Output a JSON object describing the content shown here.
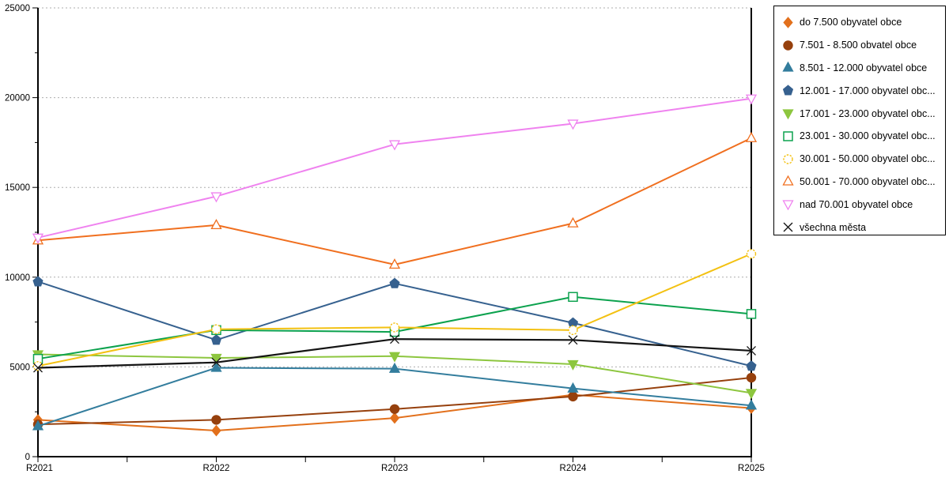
{
  "chart_data": {
    "type": "line",
    "x": [
      "R2021",
      "R2022",
      "R2023",
      "R2024",
      "R2025"
    ],
    "ylim": [
      0,
      25000
    ],
    "yticks": [
      0,
      5000,
      10000,
      15000,
      20000,
      25000
    ],
    "grid": "horizontal dashed gridlines",
    "legend_position": "top-right",
    "series": [
      {
        "name": "do 7.500 obyvatel obce",
        "color": "#e2701c",
        "marker": "diamond",
        "filled": true,
        "values": [
          2050,
          1450,
          2150,
          3450,
          2700
        ]
      },
      {
        "name": "7.501 - 8.500 obvatel obce",
        "color": "#96400d",
        "marker": "circle",
        "filled": true,
        "values": [
          1800,
          2050,
          2650,
          3350,
          4400
        ]
      },
      {
        "name": "8.501 - 12.000 obyvatel obce",
        "color": "#337d9d",
        "marker": "triangle-up",
        "filled": true,
        "values": [
          1700,
          4950,
          4900,
          3800,
          2850
        ]
      },
      {
        "name": "12.001 - 17.000 obyvatel obc...",
        "color": "#36618f",
        "marker": "pentagon",
        "filled": true,
        "values": [
          9750,
          6500,
          9650,
          7450,
          5050
        ]
      },
      {
        "name": "17.001 - 23.000 obyvatel obc...",
        "color": "#8dc63f",
        "marker": "triangle-down",
        "filled": true,
        "values": [
          5700,
          5500,
          5600,
          5150,
          3550
        ]
      },
      {
        "name": "23.001 - 30.000 obyvatel obc...",
        "color": "#0ca24e",
        "marker": "square",
        "filled": false,
        "values": [
          5450,
          7050,
          6950,
          8900,
          7950
        ]
      },
      {
        "name": "30.001 - 50.000 obyvatel obc...",
        "color": "#f3c112",
        "marker": "circle",
        "filled": false,
        "values": [
          5050,
          7100,
          7200,
          7050,
          11300
        ]
      },
      {
        "name": "50.001 - 70.000 obyvatel obc...",
        "color": "#f06f1f",
        "marker": "triangle-up",
        "filled": false,
        "values": [
          12050,
          12900,
          10700,
          13000,
          17750
        ]
      },
      {
        "name": "nad 70.001 obyvatel obce",
        "color": "#ef82ef",
        "marker": "triangle-down",
        "filled": false,
        "values": [
          12200,
          14500,
          17400,
          18550,
          19950
        ]
      },
      {
        "name": "všechna města",
        "color": "#141414",
        "marker": "x-cross",
        "filled": false,
        "values": [
          4950,
          5250,
          6550,
          6500,
          5900
        ]
      }
    ]
  },
  "colors": {
    "background": "#ffffff",
    "axis": "#000000",
    "gridline": "#adadad",
    "legend_border": "#000000"
  }
}
